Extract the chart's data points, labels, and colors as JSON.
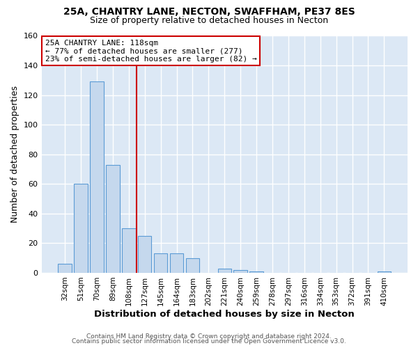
{
  "title": "25A, CHANTRY LANE, NECTON, SWAFFHAM, PE37 8ES",
  "subtitle": "Size of property relative to detached houses in Necton",
  "xlabel": "Distribution of detached houses by size in Necton",
  "ylabel": "Number of detached properties",
  "bar_labels": [
    "32sqm",
    "51sqm",
    "70sqm",
    "89sqm",
    "108sqm",
    "127sqm",
    "145sqm",
    "164sqm",
    "183sqm",
    "202sqm",
    "221sqm",
    "240sqm",
    "259sqm",
    "278sqm",
    "297sqm",
    "316sqm",
    "334sqm",
    "353sqm",
    "372sqm",
    "391sqm",
    "410sqm"
  ],
  "bar_values": [
    6,
    60,
    129,
    73,
    30,
    25,
    13,
    13,
    10,
    0,
    3,
    2,
    1,
    0,
    0,
    0,
    0,
    0,
    0,
    0,
    1
  ],
  "bar_color": "#c5d8ed",
  "bar_edge_color": "#5b9bd5",
  "annotation_text_line1": "25A CHANTRY LANE: 118sqm",
  "annotation_text_line2": "← 77% of detached houses are smaller (277)",
  "annotation_text_line3": "23% of semi-detached houses are larger (82) →",
  "annotation_box_color": "#ffffff",
  "annotation_box_edge": "#cc0000",
  "vline_color": "#cc0000",
  "ylim": [
    0,
    160
  ],
  "yticks": [
    0,
    20,
    40,
    60,
    80,
    100,
    120,
    140,
    160
  ],
  "plot_bg_color": "#dce8f5",
  "fig_bg_color": "#ffffff",
  "grid_color": "#ffffff",
  "footer_line1": "Contains HM Land Registry data © Crown copyright and database right 2024.",
  "footer_line2": "Contains public sector information licensed under the Open Government Licence v3.0."
}
